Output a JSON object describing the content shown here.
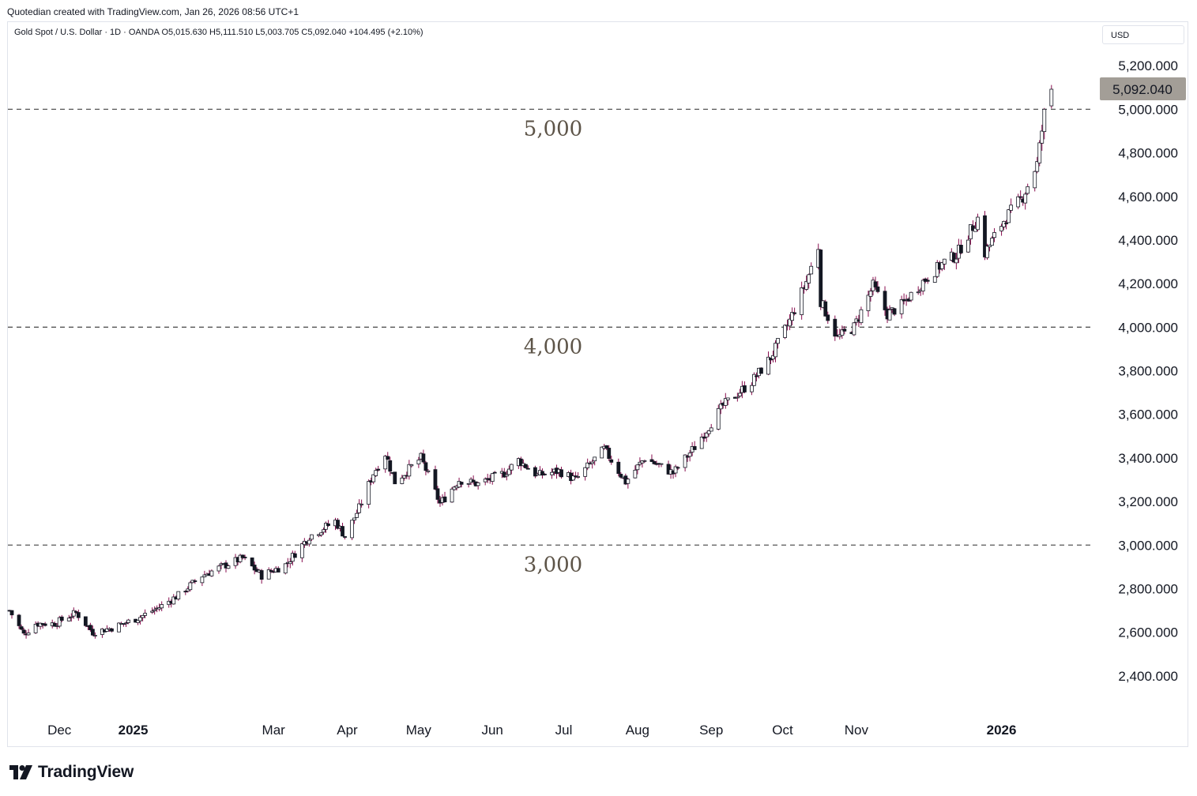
{
  "header": {
    "caption": "Quotedian created with TradingView.com, Jan 26, 2026 08:56 UTC+1"
  },
  "legend": {
    "text": "Gold Spot / U.S. Dollar · 1D · OANDA   O5,015.630   H5,111.510   L5,003.705   C5,092.040   +104.495 (+2.10%)"
  },
  "currency": "USD",
  "footer": {
    "brand": "TradingView"
  },
  "colors": {
    "up": "#ffffff",
    "down": "#131722",
    "wick": "#880e4f",
    "level_line": "#555555",
    "level_text": "#5d5448",
    "price_badge": "#a39e97"
  },
  "chart_data": {
    "type": "candlestick",
    "title": "Gold Spot / U.S. Dollar",
    "last_price_label": "5,092.040",
    "y_ticks": [
      "5,200.000",
      "5,000.000",
      "4,800.000",
      "4,600.000",
      "4,400.000",
      "4,200.000",
      "4,000.000",
      "3,800.000",
      "3,600.000",
      "3,400.000",
      "3,200.000",
      "3,000.000",
      "2,800.000",
      "2,600.000",
      "2,400.000"
    ],
    "y_tick_values": [
      5200,
      5000,
      4800,
      4600,
      4400,
      4200,
      4000,
      3800,
      3600,
      3400,
      3200,
      3000,
      2800,
      2600,
      2400
    ],
    "ylim": [
      2240,
      5400
    ],
    "x_tick_labels": [
      {
        "label": "Dec",
        "bold": false
      },
      {
        "label": "2025",
        "bold": true
      },
      {
        "label": "Mar",
        "bold": false
      },
      {
        "label": "Apr",
        "bold": false
      },
      {
        "label": "May",
        "bold": false
      },
      {
        "label": "Jun",
        "bold": false
      },
      {
        "label": "Jul",
        "bold": false
      },
      {
        "label": "Aug",
        "bold": false
      },
      {
        "label": "Sep",
        "bold": false
      },
      {
        "label": "Oct",
        "bold": false
      },
      {
        "label": "Nov",
        "bold": false
      },
      {
        "label": "2026",
        "bold": true
      }
    ],
    "x_tick_dates": [
      "2024-12-01",
      "2025-01-01",
      "2025-03-01",
      "2025-04-01",
      "2025-05-01",
      "2025-06-01",
      "2025-07-01",
      "2025-08-01",
      "2025-09-01",
      "2025-10-01",
      "2025-11-01",
      "2026-01-01"
    ],
    "x_range": [
      "2024-11-14",
      "2026-02-13"
    ],
    "levels": [
      {
        "value": 5000,
        "label": "5,000"
      },
      {
        "value": 4000,
        "label": "4,000"
      },
      {
        "value": 3000,
        "label": "3,000"
      }
    ],
    "close_path_dates": [
      "2024-11-14",
      "2024-11-20",
      "2024-11-25",
      "2024-12-03",
      "2024-12-12",
      "2024-12-19",
      "2024-12-27",
      "2025-01-07",
      "2025-01-16",
      "2025-01-24",
      "2025-02-03",
      "2025-02-11",
      "2025-02-20",
      "2025-02-28",
      "2025-03-10",
      "2025-03-20",
      "2025-03-31",
      "2025-04-04",
      "2025-04-10",
      "2025-04-16",
      "2025-04-21",
      "2025-04-25",
      "2025-05-06",
      "2025-05-14",
      "2025-05-22",
      "2025-05-30",
      "2025-06-10",
      "2025-06-16",
      "2025-06-24",
      "2025-07-03",
      "2025-07-10",
      "2025-07-22",
      "2025-07-31",
      "2025-08-08",
      "2025-08-20",
      "2025-08-29",
      "2025-09-10",
      "2025-09-22",
      "2025-09-30",
      "2025-10-08",
      "2025-10-15",
      "2025-10-20",
      "2025-10-21",
      "2025-10-28",
      "2025-11-04",
      "2025-11-12",
      "2025-11-18",
      "2025-11-24",
      "2025-12-03",
      "2025-12-12",
      "2025-12-17",
      "2025-12-26",
      "2025-12-29",
      "2026-01-06",
      "2026-01-14",
      "2026-01-20",
      "2026-01-23",
      "2026-01-26"
    ],
    "close_path_values": [
      2700,
      2590,
      2640,
      2640,
      2690,
      2600,
      2620,
      2665,
      2715,
      2770,
      2860,
      2900,
      2940,
      2860,
      2910,
      3040,
      3110,
      3040,
      3170,
      3330,
      3420,
      3290,
      3400,
      3190,
      3300,
      3280,
      3330,
      3390,
      3320,
      3340,
      3300,
      3440,
      3290,
      3400,
      3330,
      3450,
      3640,
      3750,
      3860,
      4030,
      4210,
      4370,
      4120,
      3950,
      4000,
      4190,
      4060,
      4100,
      4210,
      4300,
      4330,
      4500,
      4340,
      4490,
      4600,
      4750,
      4980,
      5092.04
    ]
  }
}
